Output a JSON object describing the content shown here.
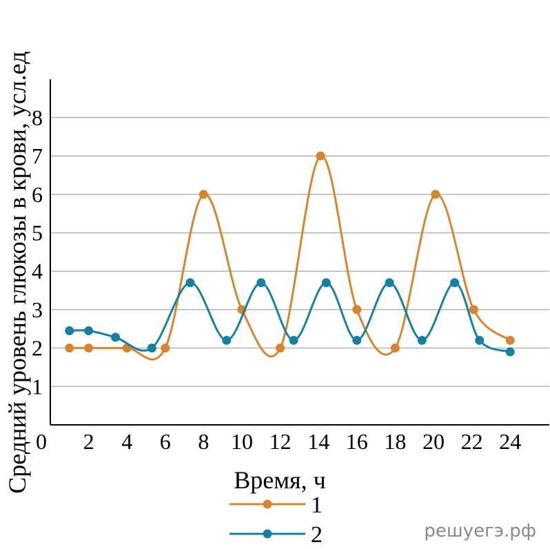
{
  "chart_data": {
    "type": "line",
    "xlabel": "Время, ч",
    "ylabel": "Средний уровень глюкозы в крови, усл.ед",
    "origin_label": "0",
    "xlim": [
      0,
      26
    ],
    "ylim": [
      0,
      8.9
    ],
    "x_ticks": [
      2,
      4,
      6,
      8,
      10,
      12,
      14,
      16,
      18,
      20,
      22,
      24
    ],
    "y_ticks": [
      1,
      2,
      3,
      4,
      5,
      6,
      7,
      8
    ],
    "grid": "horizontal",
    "legend_position": "bottom-center",
    "series": [
      {
        "name": "1",
        "color": "#d58530",
        "points": [
          [
            1,
            2.0
          ],
          [
            2,
            2.0
          ],
          [
            4,
            2.0
          ],
          [
            6,
            2.0
          ],
          [
            8,
            6.0
          ],
          [
            10,
            3.0
          ],
          [
            12,
            2.0
          ],
          [
            14.1,
            7.0
          ],
          [
            16,
            3.0
          ],
          [
            18,
            2.0
          ],
          [
            20.1,
            6.0
          ],
          [
            22.1,
            3.0
          ],
          [
            24,
            2.2
          ]
        ]
      },
      {
        "name": "2",
        "color": "#177fa0",
        "points": [
          [
            1,
            2.45
          ],
          [
            2,
            2.45
          ],
          [
            3.4,
            2.28
          ],
          [
            5.3,
            2.0
          ],
          [
            7.3,
            3.7
          ],
          [
            9.2,
            2.2
          ],
          [
            11,
            3.7
          ],
          [
            12.7,
            2.2
          ],
          [
            14.4,
            3.7
          ],
          [
            16,
            2.2
          ],
          [
            17.7,
            3.7
          ],
          [
            19.4,
            2.2
          ],
          [
            21.1,
            3.7
          ],
          [
            22.4,
            2.2
          ],
          [
            24,
            1.9
          ]
        ]
      }
    ]
  },
  "watermark": "решуегэ.рф"
}
